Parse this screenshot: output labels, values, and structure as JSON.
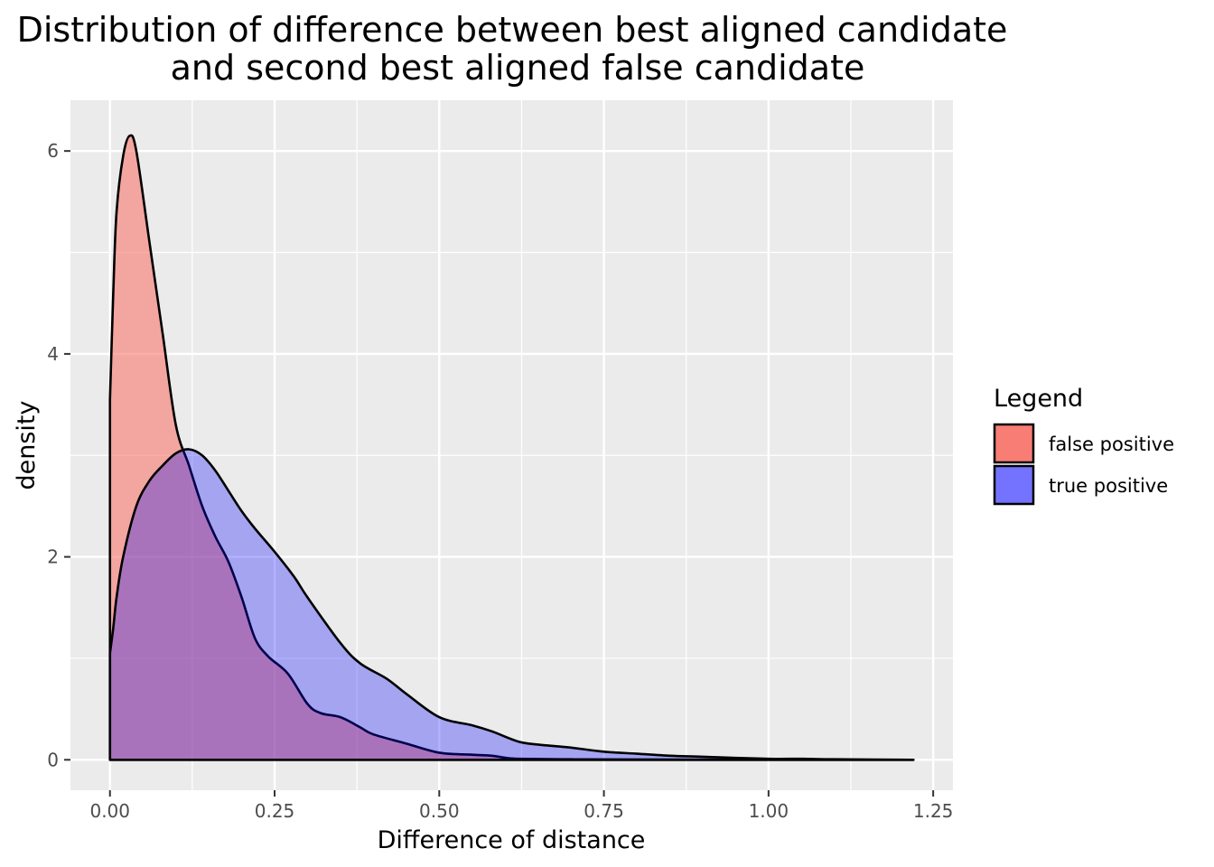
{
  "chart_data": {
    "type": "area",
    "title_lines": [
      "Distribution of difference between best aligned candidate",
      "and second best aligned false candidate"
    ],
    "xlabel": "Difference of distance",
    "ylabel": "density",
    "xlim": [
      -0.06,
      1.28
    ],
    "ylim": [
      -0.3,
      6.5
    ],
    "x_ticks": [
      0,
      0.25,
      0.5,
      0.75,
      1.0,
      1.25
    ],
    "x_tick_labels": [
      "0.00",
      "0.25",
      "0.50",
      "0.75",
      "1.00",
      "1.25"
    ],
    "y_ticks": [
      0,
      2,
      4,
      6
    ],
    "y_tick_labels": [
      "0",
      "2",
      "4",
      "6"
    ],
    "grid": true,
    "legend": {
      "title": "Legend",
      "position": "right"
    },
    "series": [
      {
        "name": "false positive",
        "fill_color": "#F8766D",
        "fill_opacity": 0.6,
        "x": [
          0,
          0.005,
          0.01,
          0.02,
          0.03,
          0.04,
          0.06,
          0.08,
          0.1,
          0.12,
          0.14,
          0.16,
          0.18,
          0.2,
          0.22,
          0.24,
          0.27,
          0.3,
          0.32,
          0.35,
          0.38,
          0.4,
          0.45,
          0.5,
          0.55,
          0.58,
          0.6,
          0.62,
          0.7,
          0.8,
          1.0,
          1.22
        ],
        "y": [
          3.55,
          4.6,
          5.4,
          5.95,
          6.15,
          6.0,
          5.1,
          4.2,
          3.3,
          2.9,
          2.5,
          2.2,
          1.95,
          1.6,
          1.2,
          1.02,
          0.85,
          0.55,
          0.46,
          0.42,
          0.32,
          0.25,
          0.16,
          0.07,
          0.05,
          0.04,
          0.02,
          0.01,
          0.005,
          0.003,
          0.002,
          0.0
        ]
      },
      {
        "name": "true positive",
        "fill_color": "#0000FF",
        "fill_opacity": 0.3,
        "x": [
          0,
          0.005,
          0.01,
          0.02,
          0.04,
          0.06,
          0.08,
          0.1,
          0.12,
          0.14,
          0.16,
          0.18,
          0.2,
          0.22,
          0.25,
          0.28,
          0.3,
          0.35,
          0.38,
          0.42,
          0.45,
          0.5,
          0.55,
          0.58,
          0.62,
          0.65,
          0.7,
          0.75,
          0.8,
          0.85,
          0.9,
          1.0,
          1.05,
          1.1,
          1.22
        ],
        "y": [
          1.05,
          1.3,
          1.6,
          2.0,
          2.5,
          2.75,
          2.9,
          3.02,
          3.06,
          3.0,
          2.85,
          2.65,
          2.45,
          2.28,
          2.05,
          1.8,
          1.6,
          1.15,
          0.95,
          0.8,
          0.65,
          0.42,
          0.34,
          0.28,
          0.18,
          0.15,
          0.12,
          0.08,
          0.06,
          0.04,
          0.03,
          0.01,
          0.01,
          0.005,
          0.0
        ]
      }
    ]
  }
}
